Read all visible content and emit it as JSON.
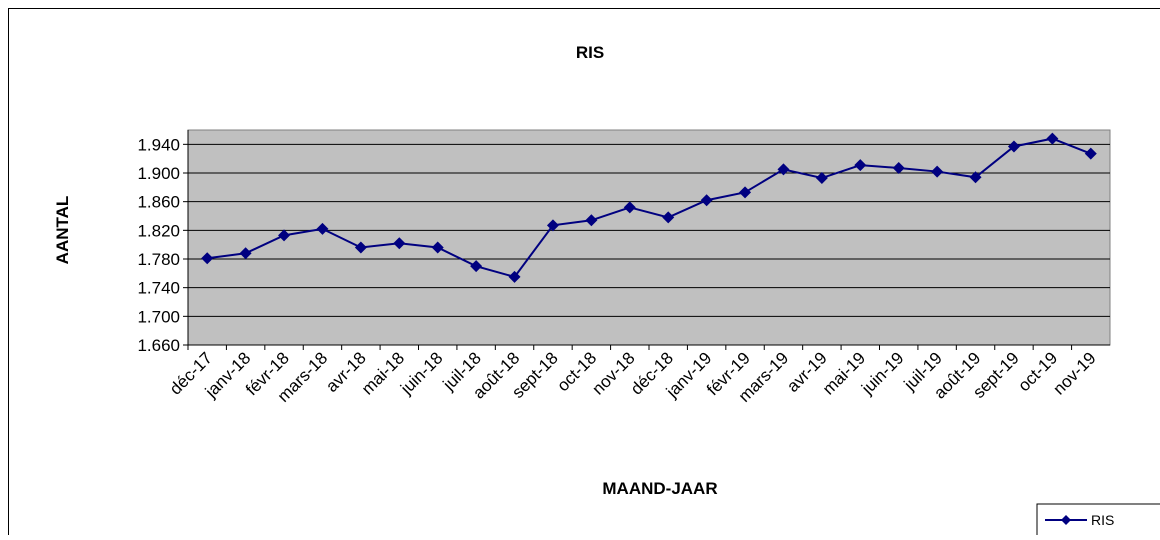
{
  "chart_data": {
    "type": "line",
    "title": "RIS",
    "x_label": "MAAND-JAAR",
    "y_label": "AANTAL",
    "categories": [
      "déc-17",
      "janv-18",
      "févr-18",
      "mars-18",
      "avr-18",
      "mai-18",
      "juin-18",
      "juil-18",
      "août-18",
      "sept-18",
      "oct-18",
      "nov-18",
      "déc-18",
      "janv-19",
      "févr-19",
      "mars-19",
      "avr-19",
      "mai-19",
      "juin-19",
      "juil-19",
      "août-19",
      "sept-19",
      "oct-19",
      "nov-19"
    ],
    "series": [
      {
        "name": "RIS",
        "color": "#000080",
        "values": [
          1781,
          1788,
          1813,
          1822,
          1796,
          1802,
          1796,
          1770,
          1755,
          1827,
          1834,
          1852,
          1838,
          1862,
          1873,
          1905,
          1893,
          1911,
          1907,
          1902,
          1894,
          1937,
          1948,
          1927
        ]
      }
    ],
    "ylim": [
      1660,
      1960
    ],
    "yticks": [
      {
        "value": 1660,
        "label": "1.660"
      },
      {
        "value": 1700,
        "label": "1.700"
      },
      {
        "value": 1740,
        "label": "1.740"
      },
      {
        "value": 1780,
        "label": "1.780"
      },
      {
        "value": 1820,
        "label": "1.820"
      },
      {
        "value": 1860,
        "label": "1.860"
      },
      {
        "value": 1900,
        "label": "1.900"
      },
      {
        "value": 1940,
        "label": "1.940"
      }
    ],
    "grid": true,
    "legend": "bottom-right",
    "plot_background": "#c0c0c0"
  }
}
